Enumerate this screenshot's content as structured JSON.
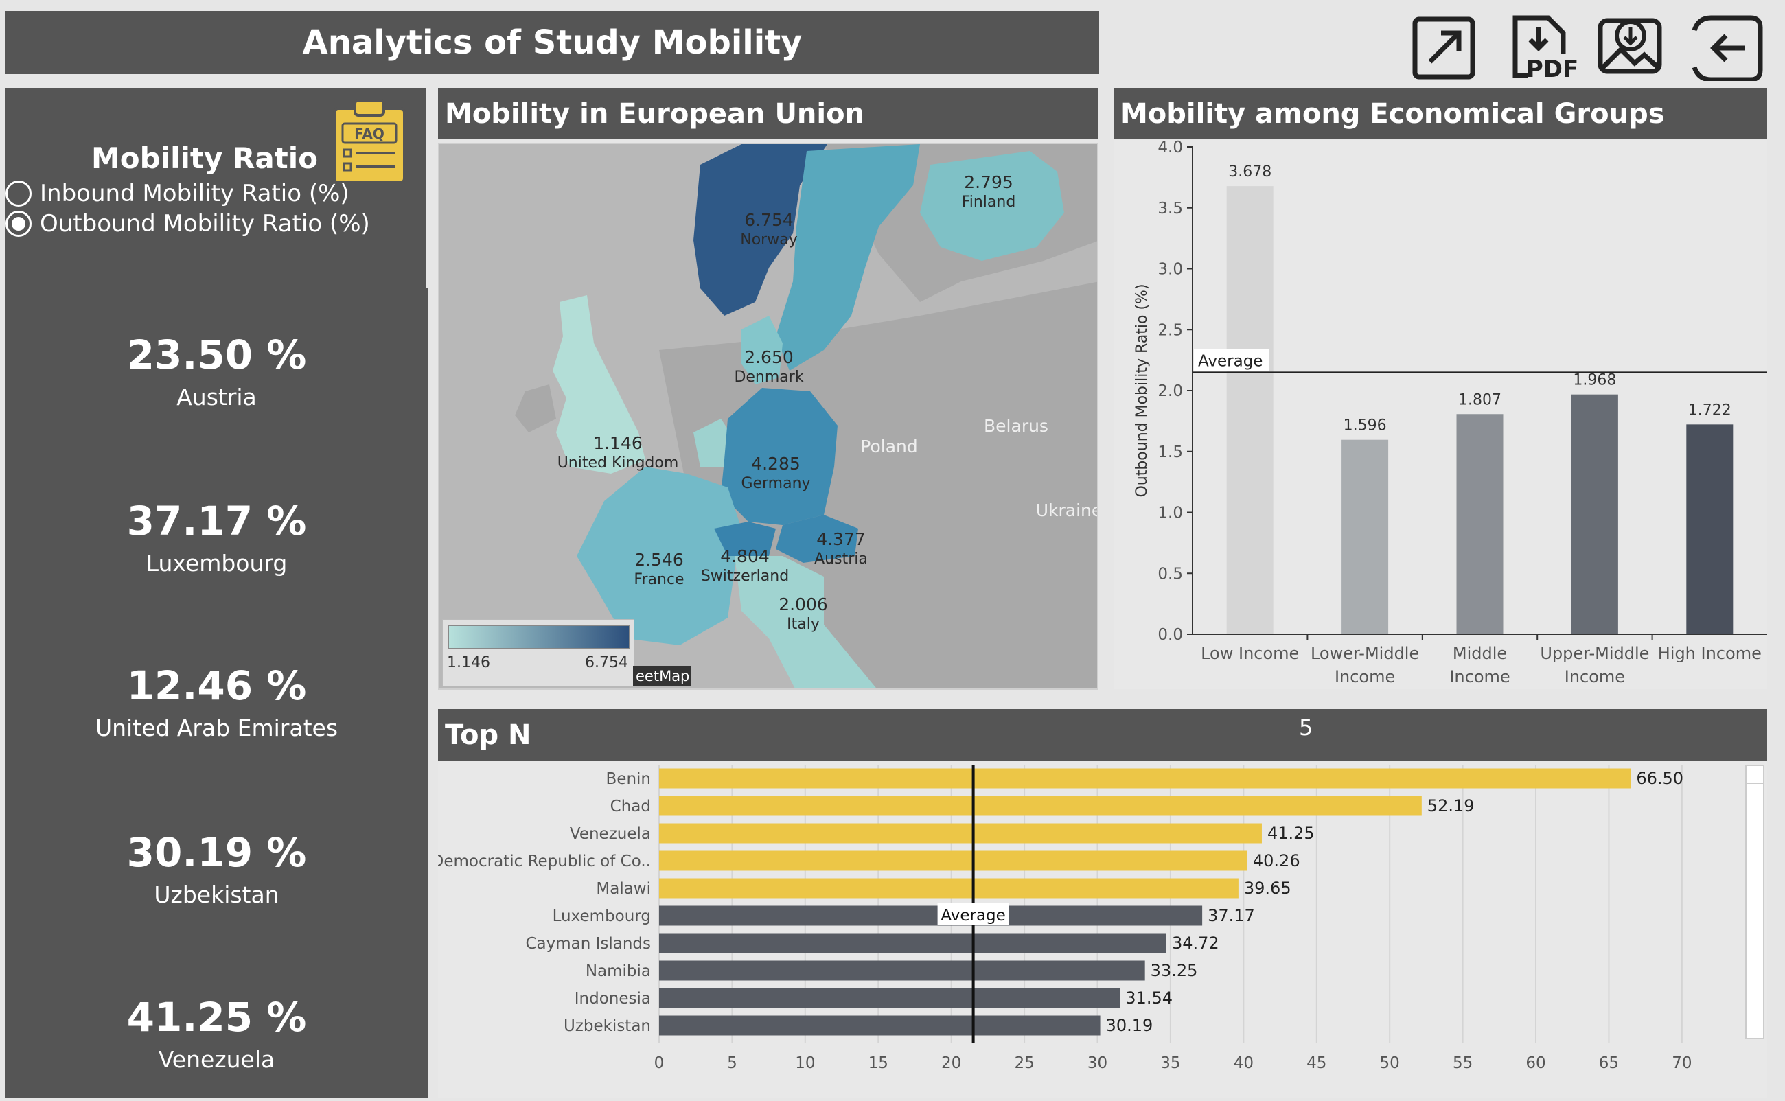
{
  "header": {
    "title": "Analytics of Study Mobility"
  },
  "toolbar": {
    "buttons": [
      {
        "icon": "expand-icon"
      },
      {
        "icon": "pdf-download-icon",
        "label": "PDF"
      },
      {
        "icon": "image-download-icon"
      },
      {
        "icon": "back-arrow-icon"
      }
    ]
  },
  "sidebar": {
    "title": "Mobility Ratio",
    "faq_label": "FAQ",
    "options": [
      {
        "label": "Inbound Mobility Ratio (%)",
        "selected": false
      },
      {
        "label": "Outbound Mobility Ratio (%)",
        "selected": true
      }
    ],
    "kpis": [
      {
        "value": "23.50 %",
        "country": "Austria"
      },
      {
        "value": "37.17 %",
        "country": "Luxembourg"
      },
      {
        "value": "12.46 %",
        "country": "United Arab Emirates"
      },
      {
        "value": "30.19 %",
        "country": "Uzbekistan"
      },
      {
        "value": "41.25 %",
        "country": "Venezuela"
      }
    ]
  },
  "map_panel": {
    "title": "Mobility in European Union",
    "labels": [
      {
        "value": "6.754",
        "name": "Norway"
      },
      {
        "value": "2.795",
        "name": "Finland"
      },
      {
        "value": "2.650",
        "name": "Denmark"
      },
      {
        "value": "1.146",
        "name": "United Kingdom"
      },
      {
        "value": "4.285",
        "name": "Germany"
      },
      {
        "value": "4.377",
        "name": "Austria"
      },
      {
        "value": "2.546",
        "name": "France"
      },
      {
        "value": "4.804",
        "name": "Switzerland"
      },
      {
        "value": "2.006",
        "name": "Italy"
      },
      {
        "value": "",
        "name": "Poland"
      },
      {
        "value": "",
        "name": "Belarus"
      },
      {
        "value": "",
        "name": "Ukraine"
      }
    ],
    "legend": {
      "min": "1.146",
      "max": "6.754",
      "color_low": "#b7e1dc",
      "color_high": "#2c4f7c"
    },
    "attribution": "eetMap"
  },
  "econ_panel": {
    "title": "Mobility among Economical Groups",
    "average_label": "Average"
  },
  "topn_panel": {
    "title": "Top N",
    "n_value": "5",
    "average_label": "Average"
  },
  "chart_data": [
    {
      "type": "bar",
      "categories": [
        "Low Income",
        "Lower-Middle Income",
        "Middle Income",
        "Upper-Middle Income",
        "High Income"
      ],
      "values": [
        3.678,
        1.596,
        1.807,
        1.968,
        1.722
      ],
      "data_labels": [
        "3.678",
        "1.596",
        "1.807",
        "1.968",
        "1.722"
      ],
      "bar_colors": [
        "#d6d6d6",
        "#a9adb0",
        "#8b8f95",
        "#676c74",
        "#4a505c"
      ],
      "ylabel": "Outbound Mobility Ratio (%)",
      "ylim": [
        0,
        4.0
      ],
      "yticks": [
        0.0,
        0.5,
        1.0,
        1.5,
        2.0,
        2.5,
        3.0,
        3.5,
        4.0
      ],
      "ytick_labels": [
        "0.0",
        "0.5",
        "1.0",
        "1.5",
        "2.0",
        "2.5",
        "3.0",
        "3.5",
        "4.0"
      ],
      "reference_line": {
        "label": "Average",
        "value": 2.15
      }
    },
    {
      "type": "bar",
      "orientation": "horizontal",
      "categories": [
        "Benin",
        "Chad",
        "Venezuela",
        "Democratic Republic of Co..",
        "Malawi",
        "Luxembourg",
        "Cayman Islands",
        "Namibia",
        "Indonesia",
        "Uzbekistan"
      ],
      "values": [
        66.5,
        52.19,
        41.25,
        40.26,
        39.65,
        37.17,
        34.72,
        33.25,
        31.54,
        30.19
      ],
      "data_labels": [
        "66.50",
        "52.19",
        "41.25",
        "40.26",
        "39.65",
        "37.17",
        "34.72",
        "33.25",
        "31.54",
        "30.19"
      ],
      "highlight_top": 5,
      "highlight_color": "#ecc647",
      "base_color": "#575b63",
      "xlim": [
        0,
        74
      ],
      "xticks": [
        0,
        5,
        10,
        15,
        20,
        25,
        30,
        35,
        40,
        45,
        50,
        55,
        60,
        65,
        70
      ],
      "xtick_labels": [
        "0",
        "5",
        "10",
        "15",
        "20",
        "25",
        "30",
        "35",
        "40",
        "45",
        "50",
        "55",
        "60",
        "65",
        "70"
      ],
      "reference_line": {
        "label": "Average",
        "value": 21.5
      },
      "grid": true
    }
  ]
}
